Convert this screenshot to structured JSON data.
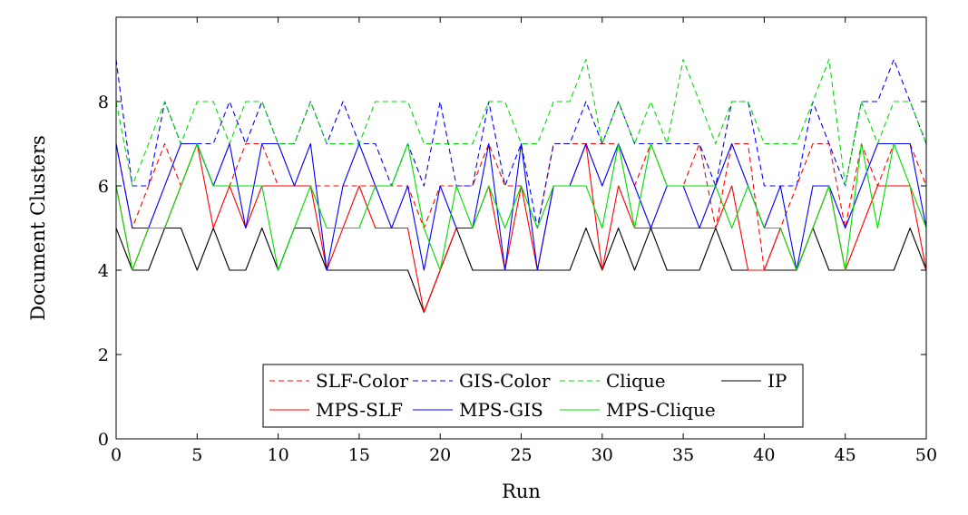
{
  "chart_data": {
    "type": "line",
    "title": "",
    "xlabel": "Run",
    "ylabel": "Document Clusters",
    "xlim": [
      0,
      50
    ],
    "ylim": [
      0,
      10
    ],
    "x_ticks": [
      "0",
      "5",
      "10",
      "15",
      "20",
      "25",
      "30",
      "35",
      "40",
      "45",
      "50"
    ],
    "y_ticks": [
      "0",
      "2",
      "4",
      "6",
      "8"
    ],
    "x_tick_values": [
      0,
      5,
      10,
      15,
      20,
      25,
      30,
      35,
      40,
      45,
      50
    ],
    "y_tick_values": [
      0,
      2,
      4,
      6,
      8
    ],
    "grid": false,
    "legend_position": "bottom-center",
    "x": [
      0,
      1,
      2,
      3,
      4,
      5,
      6,
      7,
      8,
      9,
      10,
      11,
      12,
      13,
      14,
      15,
      16,
      17,
      18,
      19,
      20,
      21,
      22,
      23,
      24,
      25,
      26,
      27,
      28,
      29,
      30,
      31,
      32,
      33,
      34,
      35,
      36,
      37,
      38,
      39,
      40,
      41,
      42,
      43,
      44,
      45,
      46,
      47,
      48,
      49,
      50
    ],
    "series": [
      {
        "name": "SLF-Color",
        "color": "#ff0000",
        "dashed": true,
        "values": [
          7,
          5,
          6,
          7,
          6,
          7,
          6,
          6,
          7,
          7,
          6,
          6,
          6,
          6,
          6,
          6,
          6,
          6,
          6,
          5,
          6,
          6,
          6,
          7,
          6,
          6,
          5,
          7,
          7,
          7,
          7,
          7,
          6,
          7,
          6,
          6,
          7,
          5,
          7,
          7,
          4,
          5,
          6,
          7,
          7,
          5,
          7,
          6,
          7,
          7,
          6
        ]
      },
      {
        "name": "GIS-Color",
        "color": "#0000ff",
        "dashed": true,
        "values": [
          9,
          6,
          6,
          8,
          7,
          7,
          7,
          8,
          7,
          8,
          7,
          7,
          8,
          7,
          8,
          7,
          7,
          6,
          7,
          6,
          8,
          6,
          6,
          8,
          6,
          7,
          5,
          7,
          7,
          8,
          7,
          8,
          7,
          7,
          7,
          7,
          7,
          6,
          8,
          8,
          6,
          6,
          6,
          8,
          7,
          6,
          8,
          8,
          9,
          8,
          7
        ]
      },
      {
        "name": "Clique",
        "color": "#00dd00",
        "dashed": true,
        "values": [
          8,
          6,
          7,
          8,
          7,
          8,
          8,
          7,
          8,
          8,
          7,
          7,
          8,
          7,
          7,
          7,
          8,
          8,
          8,
          7,
          7,
          7,
          7,
          8,
          8,
          7,
          7,
          8,
          8,
          9,
          7,
          8,
          7,
          8,
          7,
          9,
          8,
          7,
          8,
          8,
          7,
          7,
          7,
          8,
          9,
          6,
          8,
          7,
          8,
          8,
          7
        ]
      },
      {
        "name": "IP",
        "color": "#000000",
        "dashed": false,
        "values": [
          5,
          4,
          4,
          5,
          5,
          4,
          5,
          4,
          4,
          5,
          4,
          5,
          5,
          4,
          4,
          4,
          4,
          4,
          4,
          3,
          4,
          5,
          4,
          4,
          4,
          4,
          4,
          4,
          4,
          5,
          4,
          5,
          4,
          5,
          4,
          4,
          4,
          5,
          4,
          4,
          4,
          4,
          4,
          5,
          4,
          4,
          4,
          4,
          4,
          5,
          4
        ]
      },
      {
        "name": "MPS-SLF",
        "color": "#ff0000",
        "dashed": false,
        "values": [
          6,
          4,
          5,
          5,
          6,
          7,
          5,
          6,
          5,
          6,
          6,
          6,
          6,
          4,
          5,
          6,
          5,
          5,
          5,
          3,
          4,
          5,
          5,
          6,
          4,
          6,
          4,
          6,
          6,
          7,
          4,
          6,
          5,
          5,
          5,
          5,
          5,
          5,
          6,
          4,
          4,
          5,
          4,
          5,
          6,
          4,
          5,
          6,
          6,
          6,
          4
        ]
      },
      {
        "name": "MPS-GIS",
        "color": "#0000ff",
        "dashed": false,
        "values": [
          7,
          5,
          5,
          6,
          7,
          7,
          6,
          7,
          5,
          7,
          7,
          6,
          7,
          4,
          6,
          7,
          6,
          5,
          6,
          4,
          6,
          5,
          5,
          7,
          4,
          7,
          4,
          6,
          6,
          7,
          6,
          7,
          6,
          5,
          6,
          6,
          5,
          6,
          7,
          6,
          5,
          6,
          4,
          6,
          6,
          5,
          6,
          7,
          7,
          7,
          5
        ]
      },
      {
        "name": "MPS-Clique",
        "color": "#00dd00",
        "dashed": false,
        "values": [
          6,
          4,
          5,
          5,
          6,
          7,
          6,
          6,
          6,
          6,
          4,
          5,
          6,
          5,
          5,
          5,
          6,
          6,
          7,
          5,
          4,
          6,
          5,
          6,
          5,
          6,
          5,
          6,
          6,
          6,
          5,
          7,
          5,
          7,
          6,
          6,
          6,
          6,
          5,
          6,
          5,
          5,
          4,
          5,
          6,
          4,
          7,
          5,
          7,
          6,
          5
        ]
      }
    ]
  }
}
